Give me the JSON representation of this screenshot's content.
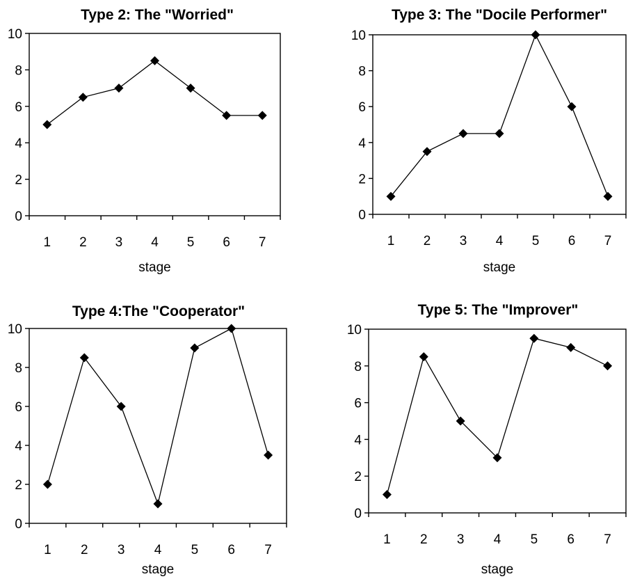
{
  "chart_data": [
    {
      "type": "line",
      "title": "Type 2: The \"Worried\"",
      "xlabel": "stage",
      "ylabel": "",
      "x": [
        1,
        2,
        3,
        4,
        5,
        6,
        7
      ],
      "series": [
        {
          "values": [
            5,
            6.5,
            7,
            8.5,
            7,
            5.5,
            5.5
          ]
        }
      ],
      "ylim": [
        0,
        10
      ],
      "yticks": [
        0,
        2,
        4,
        6,
        8,
        10
      ],
      "marker": "diamond",
      "grid": false,
      "legend": "none"
    },
    {
      "type": "line",
      "title": "Type 3: The \"Docile Performer\"",
      "xlabel": "stage",
      "ylabel": "",
      "x": [
        1,
        2,
        3,
        4,
        5,
        6,
        7
      ],
      "series": [
        {
          "values": [
            1,
            3.5,
            4.5,
            4.5,
            10,
            6,
            1
          ]
        }
      ],
      "ylim": [
        0,
        10
      ],
      "yticks": [
        0,
        2,
        4,
        6,
        8,
        10
      ],
      "marker": "diamond",
      "grid": false,
      "legend": "none"
    },
    {
      "type": "line",
      "title": "Type 4:The \"Cooperator\"",
      "xlabel": "stage",
      "ylabel": "",
      "x": [
        1,
        2,
        3,
        4,
        5,
        6,
        7
      ],
      "series": [
        {
          "values": [
            2,
            8.5,
            6,
            1,
            9,
            10,
            3.5
          ]
        }
      ],
      "ylim": [
        0,
        10
      ],
      "yticks": [
        0,
        2,
        4,
        6,
        8,
        10
      ],
      "marker": "diamond",
      "grid": false,
      "legend": "none"
    },
    {
      "type": "line",
      "title": "Type 5: The \"Improver\"",
      "xlabel": "stage",
      "ylabel": "",
      "x": [
        1,
        2,
        3,
        4,
        5,
        6,
        7
      ],
      "series": [
        {
          "values": [
            1,
            8.5,
            5,
            3,
            9.5,
            9,
            8
          ]
        }
      ],
      "ylim": [
        0,
        10
      ],
      "yticks": [
        0,
        2,
        4,
        6,
        8,
        10
      ],
      "marker": "diamond",
      "grid": false,
      "legend": "none"
    }
  ],
  "colors": {
    "line": "#000000",
    "marker": "#000000",
    "background": "#ffffff"
  }
}
